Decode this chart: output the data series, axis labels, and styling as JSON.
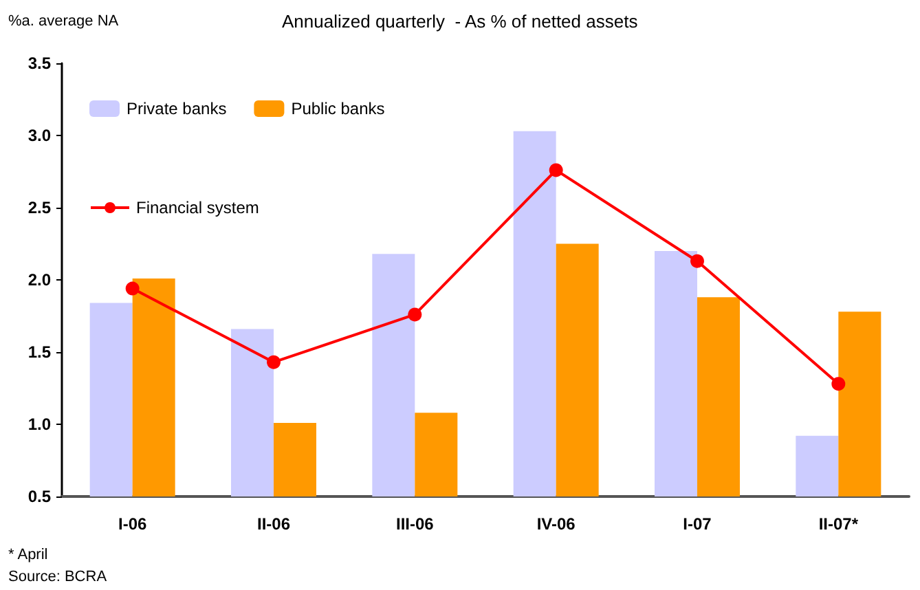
{
  "chart_data": {
    "type": "bar",
    "title": "Annualized quarterly  - As % of netted assets",
    "ylabel": "%a. average NA",
    "categories": [
      "I-06",
      "II-06",
      "III-06",
      "IV-06",
      "I-07",
      "II-07*"
    ],
    "series": [
      {
        "name": "Private banks",
        "color": "#ccccff",
        "values": [
          1.84,
          1.66,
          2.18,
          3.03,
          2.2,
          0.92
        ]
      },
      {
        "name": "Public banks",
        "color": "#ff9900",
        "values": [
          2.01,
          1.01,
          1.08,
          2.25,
          1.88,
          1.78
        ]
      },
      {
        "name": "Financial system",
        "type": "line",
        "color": "#ff0000",
        "values": [
          1.94,
          1.43,
          1.76,
          2.76,
          2.13,
          1.28
        ]
      }
    ],
    "ylim": [
      0.5,
      3.5
    ],
    "yticks": [
      0.5,
      {
        "value": 1,
        "label": "1.0"
      },
      1.5,
      {
        "value": 2,
        "label": "2.0"
      },
      2.5,
      {
        "value": 3,
        "label": "3.0"
      },
      3.5
    ],
    "grid": false,
    "legend": "top left",
    "marker": "circle",
    "line_style": "solid",
    "annotations": [
      "* April",
      "Source: BCRA"
    ]
  }
}
